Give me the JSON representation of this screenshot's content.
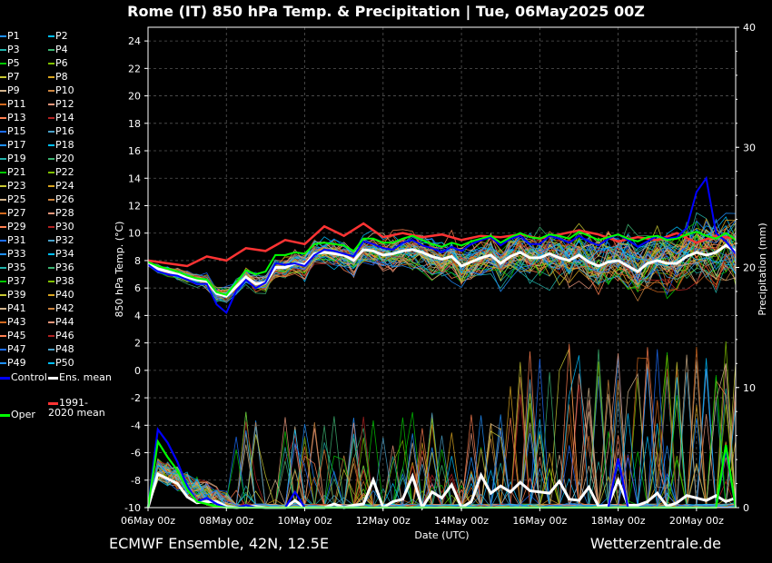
{
  "title": "Rome  (IT)  850 hPa Temp. & Precipitation | Tue, 06May2025 00Z",
  "footer": {
    "left": "ECMWF Ensemble, 42N, 12.5E",
    "right": "Wetterzentrale.de"
  },
  "chart_data": {
    "type": "line",
    "xlabel": "Date (UTC)",
    "ylabel": "850 hPa Temp. (°C)",
    "y2label": "Precipitation (mm)",
    "ylim": [
      -10,
      25
    ],
    "y2lim": [
      0,
      40
    ],
    "yticks": [
      "-10",
      "-8",
      "-6",
      "-4",
      "-2",
      "0",
      "2",
      "4",
      "6",
      "8",
      "10",
      "12",
      "14",
      "16",
      "18",
      "20",
      "22",
      "24"
    ],
    "y2ticks": [
      "0",
      "10",
      "20",
      "30",
      "40"
    ],
    "x_range_hours": [
      0,
      360
    ],
    "xticks": [
      {
        "label": "06May 00z",
        "hour": 0
      },
      {
        "label": "08May 00z",
        "hour": 48
      },
      {
        "label": "10May 00z",
        "hour": 96
      },
      {
        "label": "12May 00z",
        "hour": 144
      },
      {
        "label": "14May 00z",
        "hour": 192
      },
      {
        "label": "16May 00z",
        "hour": 240
      },
      {
        "label": "18May 00z",
        "hour": 288
      },
      {
        "label": "20May 00z",
        "hour": 336
      }
    ],
    "grid": true,
    "legend_members": [
      "P1",
      "P2",
      "P3",
      "P4",
      "P5",
      "P6",
      "P7",
      "P8",
      "P9",
      "P10",
      "P11",
      "P12",
      "P13",
      "P14",
      "P15",
      "P16",
      "P17",
      "P18",
      "P19",
      "P20",
      "P21",
      "P22",
      "P23",
      "P24",
      "P25",
      "P26",
      "P27",
      "P28",
      "P29",
      "P30",
      "P31",
      "P32",
      "P33",
      "P34",
      "P35",
      "P36",
      "P37",
      "P38",
      "P39",
      "P40",
      "P41",
      "P42",
      "P43",
      "P44",
      "P45",
      "P46",
      "P47",
      "P48",
      "P49",
      "P50"
    ],
    "legend_special": [
      {
        "name": "Control",
        "color": "#0000ff"
      },
      {
        "name": "Ens. mean",
        "color": "#ffffff"
      },
      {
        "name": "1991-2020 mean",
        "color": "#ff3333"
      },
      {
        "name": "Oper",
        "color": "#00ff00"
      }
    ],
    "member_palette": [
      "#1e90ff",
      "#00bfff",
      "#20b2aa",
      "#3cb371",
      "#00c800",
      "#7fc000",
      "#c8c832",
      "#daa520",
      "#d2b48c",
      "#cd853f",
      "#d2691e",
      "#e9967a",
      "#ff7f50",
      "#b22222",
      "#1c6eff",
      "#48a0c8"
    ],
    "series": [
      {
        "name": "1991-2020 mean",
        "color": "#ff3333",
        "hours": [
          0,
          12,
          24,
          36,
          48,
          60,
          72,
          84,
          96,
          108,
          120,
          132,
          144,
          156,
          168,
          180,
          192,
          204,
          216,
          228,
          240,
          252,
          264,
          276,
          288,
          300,
          312,
          324,
          336,
          348,
          360
        ],
        "values": [
          8.0,
          7.8,
          7.6,
          8.3,
          8.0,
          8.9,
          8.7,
          9.5,
          9.2,
          10.5,
          9.8,
          10.7,
          9.7,
          10.0,
          9.7,
          9.9,
          9.5,
          9.8,
          9.7,
          9.9,
          9.6,
          9.9,
          10.2,
          9.9,
          9.4,
          9.7,
          9.5,
          10.0,
          9.3,
          9.8,
          9.6
        ]
      },
      {
        "name": "Ens. mean",
        "color": "#ffffff",
        "hours": [
          0,
          6,
          12,
          18,
          24,
          30,
          36,
          42,
          48,
          54,
          60,
          66,
          72,
          78,
          84,
          90,
          96,
          102,
          108,
          114,
          120,
          126,
          132,
          138,
          144,
          150,
          156,
          162,
          168,
          174,
          180,
          186,
          192,
          198,
          204,
          210,
          216,
          222,
          228,
          234,
          240,
          246,
          252,
          258,
          264,
          270,
          276,
          282,
          288,
          294,
          300,
          306,
          312,
          318,
          324,
          330,
          336,
          342,
          348,
          354,
          360
        ],
        "values": [
          7.8,
          7.4,
          7.2,
          7.0,
          6.8,
          6.6,
          6.5,
          5.6,
          5.4,
          6.1,
          6.8,
          6.3,
          6.4,
          7.5,
          7.5,
          7.8,
          7.7,
          8.5,
          8.6,
          8.5,
          8.4,
          8.0,
          8.8,
          8.7,
          8.4,
          8.5,
          8.7,
          8.8,
          8.6,
          8.3,
          8.1,
          8.3,
          7.6,
          7.9,
          8.2,
          8.4,
          7.8,
          8.3,
          8.6,
          8.2,
          8.2,
          8.5,
          8.2,
          8.0,
          8.4,
          7.9,
          7.6,
          7.9,
          8.0,
          7.6,
          7.2,
          7.8,
          8.0,
          7.8,
          7.8,
          8.3,
          8.6,
          8.4,
          8.6,
          9.1,
          8.7
        ]
      },
      {
        "name": "Control",
        "color": "#0000ff",
        "hours": [
          0,
          6,
          12,
          18,
          24,
          30,
          36,
          42,
          48,
          54,
          60,
          66,
          72,
          78,
          84,
          90,
          96,
          102,
          108,
          114,
          120,
          126,
          132,
          138,
          144,
          150,
          156,
          162,
          168,
          174,
          180,
          186,
          192,
          198,
          204,
          210,
          216,
          222,
          228,
          234,
          240,
          246,
          252,
          258,
          264,
          270,
          276,
          282,
          288,
          294,
          300,
          306,
          312,
          318,
          324,
          330,
          336,
          342,
          348,
          354,
          360
        ],
        "values": [
          7.7,
          7.2,
          7.0,
          6.9,
          6.6,
          6.3,
          6.3,
          4.8,
          4.2,
          5.8,
          6.6,
          6.0,
          6.4,
          7.8,
          7.7,
          7.8,
          7.6,
          8.4,
          8.8,
          8.7,
          8.5,
          8.3,
          9.4,
          9.2,
          8.9,
          8.8,
          9.3,
          9.5,
          9.1,
          8.9,
          8.6,
          9.0,
          8.7,
          9.2,
          9.5,
          9.7,
          9.1,
          9.6,
          9.8,
          9.2,
          9.2,
          9.8,
          9.6,
          9.3,
          9.8,
          9.4,
          9.1,
          9.6,
          9.9,
          9.5,
          9.0,
          9.4,
          9.8,
          9.6,
          9.7,
          10.4,
          13.0,
          14.0,
          10.0,
          9.4,
          8.5
        ]
      },
      {
        "name": "Oper",
        "color": "#00ff00",
        "hours": [
          0,
          6,
          12,
          18,
          24,
          30,
          36,
          42,
          48,
          54,
          60,
          66,
          72,
          78,
          84,
          90,
          96,
          102,
          108,
          114,
          120,
          126,
          132,
          138,
          144,
          150,
          156,
          162,
          168,
          174,
          180,
          186,
          192,
          198,
          204,
          210,
          216,
          222,
          228,
          234,
          240,
          246,
          252,
          258,
          264,
          270,
          276,
          282,
          288,
          294,
          300,
          306,
          312,
          318,
          324,
          330,
          336,
          342,
          348,
          354,
          360
        ],
        "values": [
          7.9,
          7.6,
          7.4,
          7.2,
          6.9,
          6.7,
          6.6,
          5.7,
          5.5,
          6.4,
          7.3,
          7.0,
          7.2,
          8.4,
          8.4,
          8.6,
          8.5,
          9.2,
          9.3,
          9.2,
          9.1,
          8.7,
          9.6,
          9.6,
          9.3,
          9.3,
          9.6,
          9.8,
          9.5,
          9.2,
          9.0,
          9.3,
          9.1,
          9.4,
          9.6,
          9.8,
          9.3,
          9.7,
          10.0,
          9.7,
          9.6,
          9.9,
          9.8,
          9.6,
          10.1,
          9.8,
          9.5,
          9.7,
          9.9,
          9.6,
          9.4,
          9.7,
          9.8,
          9.5,
          9.6,
          9.9,
          10.1,
          9.8,
          9.6,
          10.0,
          9.5
        ]
      }
    ],
    "precip_series": [
      {
        "name": "Ens. mean",
        "color": "#ffffff",
        "hours": [
          0,
          6,
          12,
          18,
          24,
          30,
          36,
          42,
          48,
          54,
          60,
          66,
          72,
          78,
          84,
          90,
          96,
          102,
          108,
          114,
          120,
          126,
          132,
          138,
          144,
          150,
          156,
          162,
          168,
          174,
          180,
          186,
          192,
          198,
          204,
          210,
          216,
          222,
          228,
          234,
          240,
          246,
          252,
          258,
          264,
          270,
          276,
          282,
          288,
          294,
          300,
          306,
          312,
          318,
          324,
          330,
          336,
          342,
          348,
          354,
          360
        ],
        "values": [
          0.0,
          2.8,
          2.4,
          2.0,
          0.9,
          0.4,
          0.5,
          0.5,
          0.1,
          0.0,
          0.1,
          0.1,
          0.0,
          0.0,
          0.0,
          0.6,
          0.0,
          0.0,
          0.0,
          0.3,
          0.0,
          0.2,
          0.3,
          2.3,
          0.0,
          0.5,
          0.7,
          2.6,
          0.0,
          1.3,
          0.8,
          1.9,
          0.0,
          0.5,
          2.7,
          1.2,
          1.8,
          1.3,
          2.1,
          1.4,
          1.3,
          1.2,
          2.2,
          0.7,
          0.6,
          1.7,
          0.1,
          0.2,
          2.3,
          0.2,
          0.2,
          0.5,
          1.2,
          0.1,
          0.4,
          1.0,
          0.8,
          0.6,
          1.0,
          0.5,
          0.8
        ]
      },
      {
        "name": "Control",
        "color": "#0000ff",
        "hours": [
          0,
          6,
          12,
          18,
          24,
          30,
          36,
          42,
          48,
          54,
          60,
          66,
          72,
          78,
          84,
          90,
          96,
          102,
          108,
          114,
          120,
          126,
          132,
          138,
          144,
          150,
          156,
          162,
          168,
          174,
          180,
          186,
          192,
          198,
          204,
          210,
          216,
          222,
          228,
          234,
          240,
          246,
          252,
          258,
          264,
          270,
          276,
          282,
          288,
          294,
          300,
          306,
          312,
          318,
          324,
          330,
          336,
          342,
          348,
          354,
          360
        ],
        "values": [
          0.0,
          6.5,
          5.4,
          3.8,
          1.8,
          0.5,
          0.8,
          0.3,
          0.0,
          0.0,
          0.2,
          0.0,
          0.0,
          0.0,
          0.0,
          1.3,
          0.0,
          0.0,
          0.0,
          0.0,
          0.0,
          0.0,
          0.0,
          0.0,
          0.0,
          0.0,
          0.0,
          0.0,
          0.0,
          0.0,
          0.0,
          0.0,
          0.0,
          0.0,
          0.0,
          0.0,
          0.0,
          0.0,
          0.0,
          0.0,
          0.0,
          0.0,
          0.0,
          0.0,
          0.0,
          0.0,
          0.0,
          0.0,
          4.1,
          0.0,
          0.0,
          0.0,
          0.0,
          0.0,
          0.0,
          0.0,
          0.0,
          0.0,
          0.0,
          4.9,
          0.0
        ]
      },
      {
        "name": "Oper",
        "color": "#00ff00",
        "hours": [
          0,
          6,
          12,
          18,
          24,
          30,
          36,
          42,
          48,
          54,
          60,
          66,
          72,
          78,
          84,
          90,
          96,
          102,
          108,
          114,
          120,
          126,
          132,
          138,
          144,
          150,
          156,
          162,
          168,
          174,
          180,
          186,
          192,
          198,
          204,
          210,
          216,
          222,
          228,
          234,
          240,
          246,
          252,
          258,
          264,
          270,
          276,
          282,
          288,
          294,
          300,
          306,
          312,
          318,
          324,
          330,
          336,
          342,
          348,
          354,
          360
        ],
        "values": [
          0.0,
          5.5,
          4.2,
          3.1,
          1.5,
          0.5,
          0.3,
          0.1,
          0.0,
          0.0,
          0.0,
          0.0,
          0.0,
          0.0,
          0.0,
          0.0,
          0.0,
          0.0,
          0.0,
          0.0,
          0.0,
          0.0,
          0.0,
          0.0,
          0.0,
          0.0,
          0.0,
          0.0,
          0.0,
          0.0,
          0.0,
          0.0,
          0.0,
          0.0,
          0.0,
          0.0,
          0.0,
          0.0,
          0.0,
          0.0,
          0.0,
          0.0,
          0.0,
          0.0,
          0.0,
          0.0,
          0.0,
          0.0,
          0.0,
          0.0,
          0.0,
          0.0,
          0.0,
          0.0,
          0.0,
          0.0,
          0.0,
          0.0,
          0.0,
          5.2,
          0.0
        ]
      }
    ]
  }
}
